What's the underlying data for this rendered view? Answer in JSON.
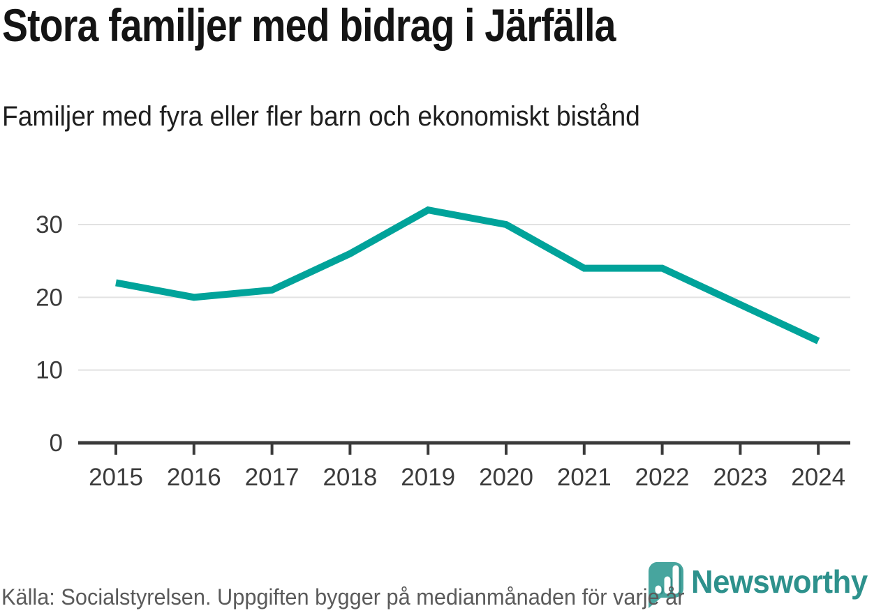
{
  "header": {
    "title": "Stora familjer med bidrag i Järfälla",
    "subtitle": "Familjer med fyra eller fler barn och ekonomiskt bistånd"
  },
  "chart_data": {
    "type": "line",
    "x": [
      2015,
      2016,
      2017,
      2018,
      2019,
      2020,
      2021,
      2022,
      2023,
      2024
    ],
    "series": [
      {
        "name": "Familjer med fyra eller fler barn och ekonomiskt bistånd, Järfälla",
        "values": [
          22,
          20,
          21,
          26,
          32,
          30,
          24,
          24,
          19,
          14
        ]
      }
    ],
    "title": "Stora familjer med bidrag i Järfälla",
    "xlabel": "",
    "ylabel": "",
    "yticks": [
      0,
      10,
      20,
      30
    ],
    "ylim": [
      0,
      33
    ],
    "grid": "horizontal",
    "legend": "none"
  },
  "footer": {
    "source": "Källa: Socialstyrelsen. Uppgiften bygger på medianmånaden för varje år",
    "logo_text": "Newsworthy"
  },
  "colors": {
    "line": "#00a39a",
    "axis": "#3a3a3a",
    "grid": "#e2e2e2",
    "tick_label": "#3b3b3b",
    "footer_text": "#5a5a5a",
    "logo_teal": "#2d918c",
    "logo_icon_fill": "#47a59e",
    "logo_bar_shadow": "#338f89"
  }
}
